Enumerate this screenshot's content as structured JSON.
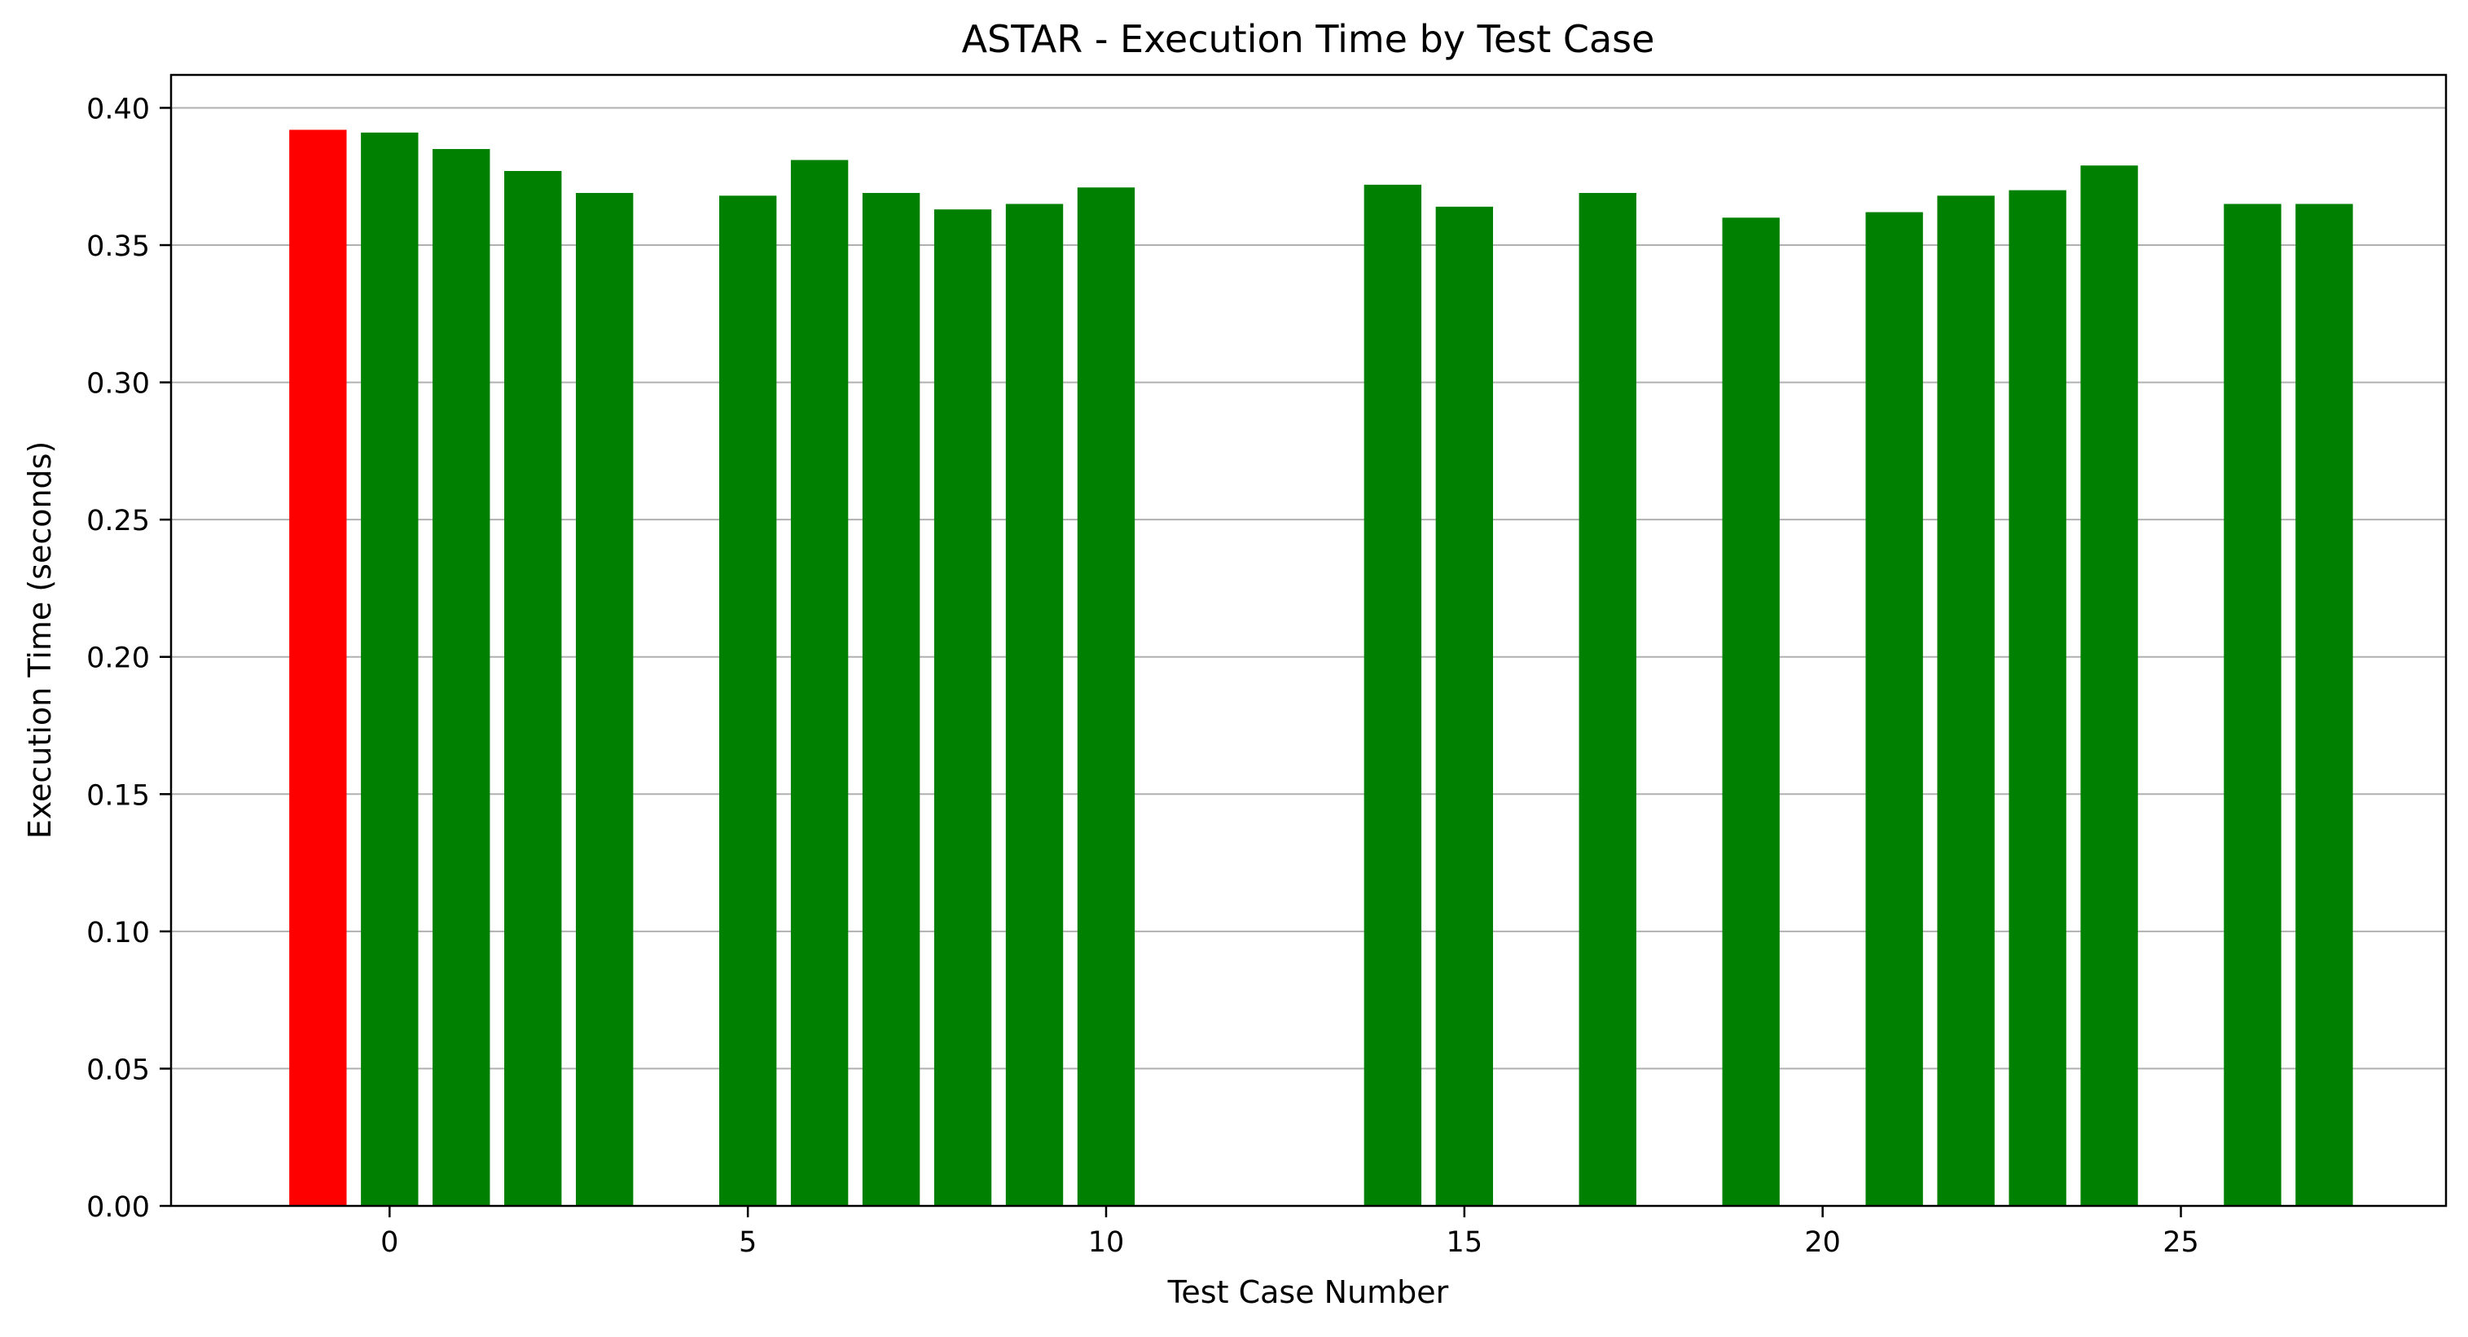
{
  "chart_data": {
    "type": "bar",
    "title": "ASTAR - Execution Time by Test Case",
    "xlabel": "Test Case Number",
    "ylabel": "Execution Time (seconds)",
    "xlim": [
      -3.05,
      28.7
    ],
    "ylim": [
      0,
      0.412
    ],
    "xticks": [
      0,
      5,
      10,
      15,
      20,
      25
    ],
    "xtick_labels": [
      "0",
      "5",
      "10",
      "15",
      "20",
      "25"
    ],
    "yticks": [
      0,
      0.05,
      0.1,
      0.15,
      0.2,
      0.25,
      0.3,
      0.35,
      0.4
    ],
    "ytick_labels": [
      "0.00",
      "0.05",
      "0.10",
      "0.15",
      "0.20",
      "0.25",
      "0.30",
      "0.35",
      "0.40"
    ],
    "grid": "horizontal",
    "legend": "none",
    "bar_width": 0.8,
    "bars": [
      {
        "x": -1,
        "value": 0.392,
        "color": "#ff0000"
      },
      {
        "x": 0,
        "value": 0.391,
        "color": "#008000"
      },
      {
        "x": 1,
        "value": 0.385,
        "color": "#008000"
      },
      {
        "x": 2,
        "value": 0.377,
        "color": "#008000"
      },
      {
        "x": 3,
        "value": 0.369,
        "color": "#008000"
      },
      {
        "x": 5,
        "value": 0.368,
        "color": "#008000"
      },
      {
        "x": 6,
        "value": 0.381,
        "color": "#008000"
      },
      {
        "x": 7,
        "value": 0.369,
        "color": "#008000"
      },
      {
        "x": 8,
        "value": 0.363,
        "color": "#008000"
      },
      {
        "x": 9,
        "value": 0.365,
        "color": "#008000"
      },
      {
        "x": 10,
        "value": 0.371,
        "color": "#008000"
      },
      {
        "x": 14,
        "value": 0.372,
        "color": "#008000"
      },
      {
        "x": 15,
        "value": 0.364,
        "color": "#008000"
      },
      {
        "x": 17,
        "value": 0.369,
        "color": "#008000"
      },
      {
        "x": 19,
        "value": 0.36,
        "color": "#008000"
      },
      {
        "x": 21,
        "value": 0.362,
        "color": "#008000"
      },
      {
        "x": 22,
        "value": 0.368,
        "color": "#008000"
      },
      {
        "x": 23,
        "value": 0.37,
        "color": "#008000"
      },
      {
        "x": 24,
        "value": 0.379,
        "color": "#008000"
      },
      {
        "x": 26,
        "value": 0.365,
        "color": "#008000"
      },
      {
        "x": 27,
        "value": 0.365,
        "color": "#008000"
      }
    ],
    "colors": {
      "highlight": "#ff0000",
      "default": "#008000",
      "grid": "#b0b0b0",
      "axes": "#000000"
    }
  }
}
